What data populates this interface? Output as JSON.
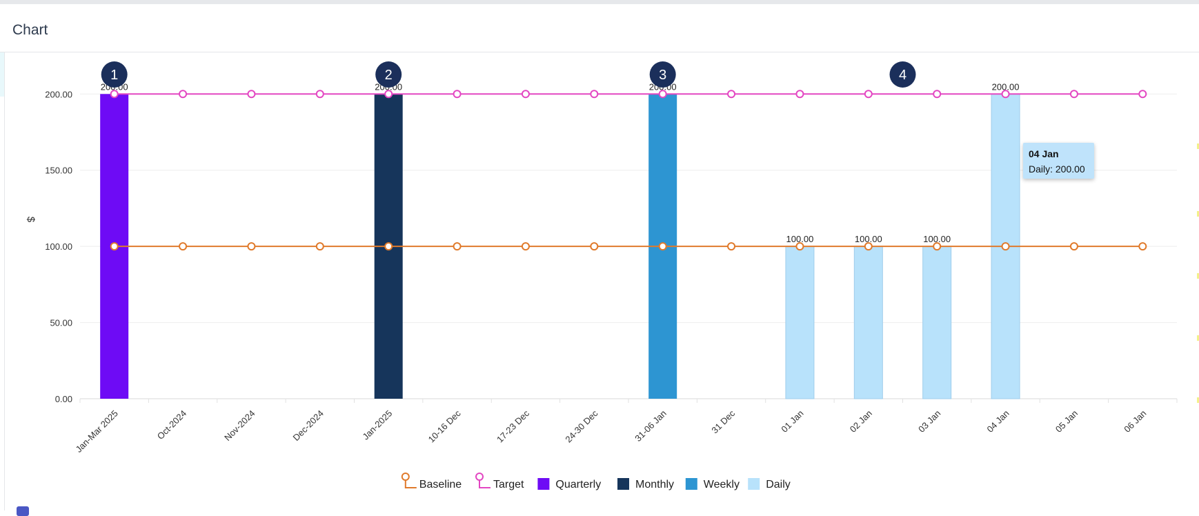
{
  "panel": {
    "title": "Chart"
  },
  "chart_data": {
    "type": "bar",
    "ylabel": "$",
    "ylim": [
      0,
      230
    ],
    "yticks": [
      "0.00",
      "50.00",
      "100.00",
      "150.00",
      "200.00"
    ],
    "ytick_values": [
      0,
      50,
      100,
      150,
      200
    ],
    "grid": true,
    "legend_position": "bottom",
    "categories": [
      "Jan-Mar 2025",
      "Oct-2024",
      "Nov-2024",
      "Dec-2024",
      "Jan-2025",
      "10-16 Dec",
      "17-23 Dec",
      "24-30 Dec",
      "31-06 Jan",
      "31 Dec",
      "01 Jan",
      "02 Jan",
      "03 Jan",
      "04 Jan",
      "05 Jan",
      "06 Jan"
    ],
    "bars": [
      {
        "series": "Quarterly",
        "category_index": 0,
        "value": 200,
        "label": "200.00"
      },
      {
        "series": "Monthly",
        "category_index": 4,
        "value": 200,
        "label": "200.00"
      },
      {
        "series": "Weekly",
        "category_index": 8,
        "value": 200,
        "label": "200.00"
      },
      {
        "series": "Daily",
        "category_index": 10,
        "value": 100,
        "label": "100.00"
      },
      {
        "series": "Daily",
        "category_index": 11,
        "value": 100,
        "label": "100.00"
      },
      {
        "series": "Daily",
        "category_index": 12,
        "value": 100,
        "label": "100.00"
      },
      {
        "series": "Daily",
        "category_index": 13,
        "value": 200,
        "label": "200.00"
      }
    ],
    "lines": [
      {
        "name": "Baseline",
        "color": "#e07a2b",
        "values": [
          100,
          100,
          100,
          100,
          100,
          100,
          100,
          100,
          100,
          100,
          100,
          100,
          100,
          100,
          100,
          100
        ]
      },
      {
        "name": "Target",
        "color": "#e347c2",
        "values": [
          200,
          200,
          200,
          200,
          200,
          200,
          200,
          200,
          200,
          200,
          200,
          200,
          200,
          200,
          200,
          200
        ]
      }
    ],
    "series_colors": {
      "Quarterly": "#6e0bf5",
      "Monthly": "#16355b",
      "Weekly": "#2d95d2",
      "Daily": "#b8e2fb"
    },
    "legend": [
      {
        "name": "Baseline",
        "kind": "line",
        "color": "#e07a2b"
      },
      {
        "name": "Target",
        "kind": "line",
        "color": "#e347c2"
      },
      {
        "name": "Quarterly",
        "kind": "box",
        "color": "#6e0bf5"
      },
      {
        "name": "Monthly",
        "kind": "box",
        "color": "#16355b"
      },
      {
        "name": "Weekly",
        "kind": "box",
        "color": "#2d95d2"
      },
      {
        "name": "Daily",
        "kind": "box",
        "color": "#b8e2fb"
      }
    ],
    "annotations": [
      {
        "text": "1",
        "category_index": 0
      },
      {
        "text": "2",
        "category_index": 4
      },
      {
        "text": "3",
        "category_index": 8
      },
      {
        "text": "4",
        "category_index": 11.5
      }
    ],
    "annotation_color": "#1b2f5b",
    "tooltip": {
      "title": "04 Jan",
      "body": "Daily: 200.00",
      "category_index": 13
    }
  }
}
